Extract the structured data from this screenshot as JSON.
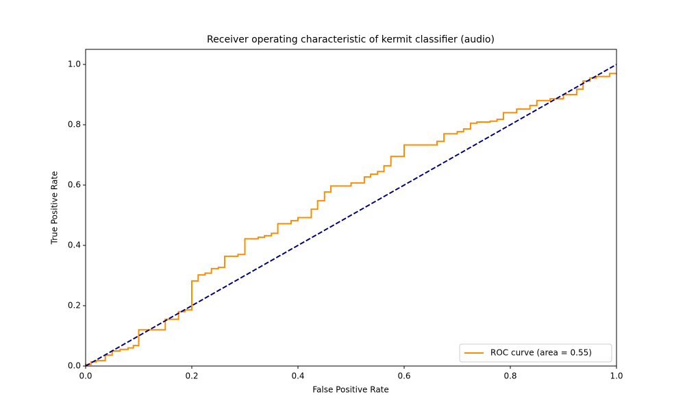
{
  "chart_data": {
    "type": "line",
    "title": "Receiver operating characteristic of kermit classifier (audio)",
    "x_label": "False Positive Rate",
    "y_label": "True Positive Rate",
    "xlim": [
      0,
      1
    ],
    "ylim": [
      0,
      1.05
    ],
    "xticks": [
      {
        "value": 0,
        "label": "0.0"
      },
      0.2,
      0.4,
      0.6,
      0.8,
      {
        "value": 1,
        "label": "1.0"
      }
    ],
    "yticks": [
      {
        "value": 0,
        "label": "0.0"
      },
      0.2,
      0.4,
      0.6,
      0.8,
      {
        "value": 1,
        "label": "1.0"
      }
    ],
    "legend": "lower right",
    "series": [
      {
        "name": "ROC curve (area = 0.55)",
        "color": "#ff8c00",
        "x": [
          0,
          0,
          0.01,
          0.01,
          0.02,
          0.02,
          0.037,
          0.037,
          0.05,
          0.05,
          0.065,
          0.065,
          0.08,
          0.08,
          0.09,
          0.09,
          0.1,
          0.1,
          0.15,
          0.15,
          0.175,
          0.175,
          0.187,
          0.187,
          0.2,
          0.2,
          0.212,
          0.212,
          0.225,
          0.225,
          0.237,
          0.237,
          0.25,
          0.25,
          0.262,
          0.262,
          0.287,
          0.287,
          0.3,
          0.3,
          0.325,
          0.325,
          0.337,
          0.337,
          0.35,
          0.35,
          0.362,
          0.362,
          0.387,
          0.387,
          0.4,
          0.4,
          0.425,
          0.425,
          0.437,
          0.437,
          0.45,
          0.45,
          0.462,
          0.462,
          0.5,
          0.5,
          0.525,
          0.525,
          0.537,
          0.537,
          0.55,
          0.55,
          0.562,
          0.562,
          0.575,
          0.575,
          0.6,
          0.6,
          0.662,
          0.662,
          0.675,
          0.675,
          0.7,
          0.7,
          0.712,
          0.712,
          0.725,
          0.725,
          0.737,
          0.737,
          0.762,
          0.762,
          0.775,
          0.775,
          0.787,
          0.787,
          0.812,
          0.812,
          0.837,
          0.837,
          0.85,
          0.85,
          0.875,
          0.875,
          0.9,
          0.9,
          0.925,
          0.925,
          0.937,
          0.937,
          0.95,
          0.95,
          0.962,
          0.962,
          0.987,
          0.987,
          1
        ],
        "values": [
          0,
          0.005,
          0.005,
          0.014,
          0.014,
          0.018,
          0.018,
          0.036,
          0.036,
          0.05,
          0.05,
          0.055,
          0.055,
          0.06,
          0.06,
          0.068,
          0.068,
          0.12,
          0.12,
          0.155,
          0.155,
          0.18,
          0.18,
          0.186,
          0.186,
          0.282,
          0.282,
          0.302,
          0.302,
          0.308,
          0.308,
          0.323,
          0.323,
          0.327,
          0.327,
          0.364,
          0.364,
          0.37,
          0.37,
          0.422,
          0.422,
          0.427,
          0.427,
          0.432,
          0.432,
          0.44,
          0.44,
          0.472,
          0.472,
          0.482,
          0.482,
          0.492,
          0.492,
          0.52,
          0.52,
          0.548,
          0.548,
          0.577,
          0.577,
          0.597,
          0.597,
          0.607,
          0.607,
          0.627,
          0.627,
          0.636,
          0.636,
          0.645,
          0.645,
          0.664,
          0.664,
          0.695,
          0.695,
          0.733,
          0.733,
          0.745,
          0.745,
          0.77,
          0.77,
          0.777,
          0.777,
          0.786,
          0.786,
          0.805,
          0.805,
          0.809,
          0.809,
          0.812,
          0.812,
          0.818,
          0.818,
          0.84,
          0.84,
          0.852,
          0.852,
          0.864,
          0.864,
          0.88,
          0.88,
          0.886,
          0.886,
          0.9,
          0.9,
          0.918,
          0.918,
          0.945,
          0.945,
          0.955,
          0.955,
          0.96,
          0.96,
          0.97,
          0.97
        ]
      }
    ],
    "reference_line": {
      "x": [
        0,
        1
      ],
      "values": [
        0,
        1
      ],
      "color": "#000080",
      "dashed": true
    }
  }
}
